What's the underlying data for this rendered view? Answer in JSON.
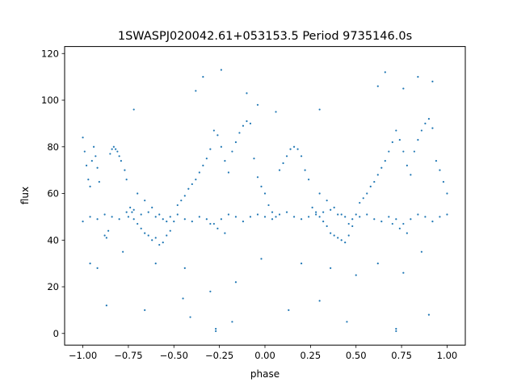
{
  "chart_data": {
    "type": "scatter",
    "title": "1SWASPJ020042.61+053153.5 Period 9735146.0s",
    "xlabel": "phase",
    "ylabel": "flux",
    "xlim": [
      -1.1,
      1.1
    ],
    "ylim": [
      -5,
      123
    ],
    "xticks": [
      -1.0,
      -0.75,
      -0.5,
      -0.25,
      0.0,
      0.25,
      0.5,
      0.75,
      1.0
    ],
    "xtick_labels": [
      "−1.00",
      "−0.75",
      "−0.50",
      "−0.25",
      "0.00",
      "0.25",
      "0.50",
      "0.75",
      "1.00"
    ],
    "yticks": [
      0,
      20,
      40,
      60,
      80,
      100,
      120
    ],
    "ytick_labels": [
      "0",
      "20",
      "40",
      "60",
      "80",
      "100",
      "120"
    ],
    "grid": false,
    "legend": "none",
    "marker_color": "#1f77b4",
    "series": [
      {
        "points": [
          [
            -1.0,
            84
          ],
          [
            -0.99,
            78
          ],
          [
            -0.98,
            72
          ],
          [
            -0.97,
            66
          ],
          [
            -0.96,
            63
          ],
          [
            -0.95,
            74
          ],
          [
            -0.94,
            80
          ],
          [
            -0.93,
            76
          ],
          [
            -0.92,
            71
          ],
          [
            -0.91,
            65
          ],
          [
            -0.88,
            42
          ],
          [
            -0.87,
            41
          ],
          [
            -0.86,
            44
          ],
          [
            -0.85,
            77
          ],
          [
            -0.84,
            79
          ],
          [
            -0.83,
            80
          ],
          [
            -0.82,
            79
          ],
          [
            -0.81,
            78
          ],
          [
            -0.8,
            76
          ],
          [
            -0.79,
            74
          ],
          [
            -0.77,
            70
          ],
          [
            -0.76,
            66
          ],
          [
            -0.75,
            50
          ],
          [
            -0.74,
            54
          ],
          [
            -0.73,
            52
          ],
          [
            -0.72,
            49
          ],
          [
            -0.7,
            47
          ],
          [
            -0.68,
            45
          ],
          [
            -0.66,
            43
          ],
          [
            -0.64,
            42
          ],
          [
            -0.62,
            40
          ],
          [
            -0.6,
            41
          ],
          [
            -0.58,
            38
          ],
          [
            -0.56,
            39
          ],
          [
            -0.54,
            42
          ],
          [
            -0.52,
            44
          ],
          [
            -0.5,
            48
          ],
          [
            -0.48,
            55
          ],
          [
            -0.46,
            57
          ],
          [
            -0.44,
            59
          ],
          [
            -0.42,
            62
          ],
          [
            -0.4,
            64
          ],
          [
            -0.38,
            66
          ],
          [
            -0.36,
            69
          ],
          [
            -0.34,
            72
          ],
          [
            -0.32,
            75
          ],
          [
            -0.3,
            79
          ],
          [
            -0.28,
            87
          ],
          [
            -0.26,
            85
          ],
          [
            -0.24,
            80
          ],
          [
            -0.22,
            74
          ],
          [
            -0.2,
            69
          ],
          [
            -0.18,
            78
          ],
          [
            -0.16,
            82
          ],
          [
            -0.14,
            86
          ],
          [
            -0.12,
            89
          ],
          [
            -0.1,
            91
          ],
          [
            -0.08,
            90
          ],
          [
            -0.06,
            75
          ],
          [
            -0.04,
            67
          ],
          [
            -0.02,
            63
          ],
          [
            0.0,
            60
          ],
          [
            0.02,
            55
          ],
          [
            0.04,
            52
          ],
          [
            0.06,
            50
          ],
          [
            0.08,
            70
          ],
          [
            0.1,
            73
          ],
          [
            0.12,
            76
          ],
          [
            0.14,
            79
          ],
          [
            0.16,
            80
          ],
          [
            0.18,
            79
          ],
          [
            0.2,
            76
          ],
          [
            0.22,
            70
          ],
          [
            0.24,
            66
          ],
          [
            0.26,
            54
          ],
          [
            0.28,
            52
          ],
          [
            0.3,
            50
          ],
          [
            0.32,
            48
          ],
          [
            0.34,
            46
          ],
          [
            0.36,
            43
          ],
          [
            0.38,
            42
          ],
          [
            0.4,
            41
          ],
          [
            0.42,
            40
          ],
          [
            0.44,
            39
          ],
          [
            0.46,
            42
          ],
          [
            0.48,
            46
          ],
          [
            0.5,
            51
          ],
          [
            0.52,
            56
          ],
          [
            0.54,
            58
          ],
          [
            0.56,
            60
          ],
          [
            0.58,
            63
          ],
          [
            0.6,
            65
          ],
          [
            0.62,
            68
          ],
          [
            0.64,
            71
          ],
          [
            0.66,
            74
          ],
          [
            0.68,
            78
          ],
          [
            0.7,
            82
          ],
          [
            0.72,
            87
          ],
          [
            0.74,
            83
          ],
          [
            0.76,
            78
          ],
          [
            0.78,
            72
          ],
          [
            0.8,
            68
          ],
          [
            0.82,
            78
          ],
          [
            0.84,
            83
          ],
          [
            0.86,
            87
          ],
          [
            0.88,
            90
          ],
          [
            0.9,
            92
          ],
          [
            0.92,
            88
          ],
          [
            0.94,
            74
          ],
          [
            0.96,
            70
          ],
          [
            0.98,
            65
          ],
          [
            1.0,
            60
          ],
          [
            -1.0,
            48
          ],
          [
            -0.96,
            50
          ],
          [
            -0.92,
            49
          ],
          [
            -0.88,
            51
          ],
          [
            -0.84,
            50
          ],
          [
            -0.8,
            49
          ],
          [
            -0.76,
            52
          ],
          [
            -0.72,
            53
          ],
          [
            -0.68,
            51
          ],
          [
            -0.64,
            52
          ],
          [
            -0.6,
            50
          ],
          [
            -0.56,
            49
          ],
          [
            -0.52,
            50
          ],
          [
            -0.48,
            51
          ],
          [
            -0.44,
            49
          ],
          [
            -0.4,
            48
          ],
          [
            -0.36,
            50
          ],
          [
            -0.32,
            49
          ],
          [
            -0.28,
            47
          ],
          [
            -0.24,
            49
          ],
          [
            -0.2,
            51
          ],
          [
            -0.16,
            50
          ],
          [
            -0.12,
            48
          ],
          [
            -0.08,
            50
          ],
          [
            -0.04,
            51
          ],
          [
            0.0,
            50
          ],
          [
            0.04,
            49
          ],
          [
            0.08,
            51
          ],
          [
            0.12,
            52
          ],
          [
            0.16,
            50
          ],
          [
            0.2,
            49
          ],
          [
            0.24,
            50
          ],
          [
            0.28,
            51
          ],
          [
            0.32,
            52
          ],
          [
            0.36,
            53
          ],
          [
            0.4,
            51
          ],
          [
            0.44,
            50
          ],
          [
            0.48,
            49
          ],
          [
            0.52,
            50
          ],
          [
            0.56,
            51
          ],
          [
            0.6,
            49
          ],
          [
            0.64,
            48
          ],
          [
            0.68,
            50
          ],
          [
            0.72,
            49
          ],
          [
            0.76,
            47
          ],
          [
            0.8,
            49
          ],
          [
            0.84,
            51
          ],
          [
            0.88,
            50
          ],
          [
            0.92,
            48
          ],
          [
            0.96,
            50
          ],
          [
            1.0,
            51
          ],
          [
            -0.7,
            60
          ],
          [
            -0.66,
            57
          ],
          [
            -0.62,
            54
          ],
          [
            -0.58,
            51
          ],
          [
            -0.54,
            48
          ],
          [
            -0.3,
            47
          ],
          [
            -0.26,
            45
          ],
          [
            -0.22,
            43
          ],
          [
            0.3,
            60
          ],
          [
            0.34,
            57
          ],
          [
            0.38,
            54
          ],
          [
            0.42,
            51
          ],
          [
            0.46,
            47
          ],
          [
            0.7,
            47
          ],
          [
            0.74,
            45
          ],
          [
            0.78,
            43
          ],
          [
            -0.96,
            30
          ],
          [
            -0.92,
            28
          ],
          [
            -0.78,
            35
          ],
          [
            -0.6,
            30
          ],
          [
            -0.44,
            28
          ],
          [
            -0.3,
            18
          ],
          [
            -0.16,
            22
          ],
          [
            -0.02,
            32
          ],
          [
            0.2,
            30
          ],
          [
            0.36,
            28
          ],
          [
            0.5,
            25
          ],
          [
            0.62,
            30
          ],
          [
            0.76,
            26
          ],
          [
            0.86,
            35
          ],
          [
            -0.72,
            96
          ],
          [
            -0.38,
            104
          ],
          [
            -0.34,
            110
          ],
          [
            -0.24,
            113
          ],
          [
            -0.04,
            98
          ],
          [
            0.06,
            95
          ],
          [
            0.3,
            96
          ],
          [
            0.62,
            106
          ],
          [
            0.66,
            112
          ],
          [
            0.76,
            105
          ],
          [
            0.84,
            110
          ],
          [
            0.92,
            108
          ],
          [
            -0.1,
            103
          ],
          [
            -0.87,
            12
          ],
          [
            -0.66,
            10
          ],
          [
            -0.41,
            7
          ],
          [
            -0.27,
            2
          ],
          [
            -0.27,
            1
          ],
          [
            -0.18,
            5
          ],
          [
            0.13,
            10
          ],
          [
            0.45,
            5
          ],
          [
            0.72,
            2
          ],
          [
            0.72,
            1
          ],
          [
            0.9,
            8
          ],
          [
            -0.45,
            15
          ],
          [
            0.3,
            14
          ]
        ]
      }
    ]
  }
}
